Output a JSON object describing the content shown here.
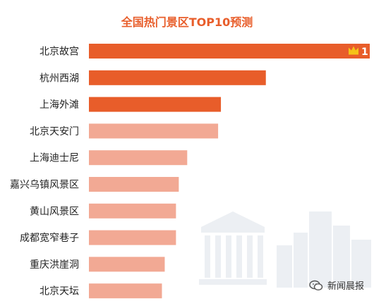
{
  "chart_data": {
    "type": "bar",
    "orientation": "horizontal",
    "title": "全国热门景区TOP10预测",
    "categories": [
      "北京故宫",
      "杭州西湖",
      "上海外滩",
      "北京天安门",
      "上海迪士尼",
      "嘉兴乌镇风景区",
      "黄山风景区",
      "成都宽窄巷子",
      "重庆洪崖洞",
      "北京天坛"
    ],
    "values": [
      100,
      63,
      47,
      46,
      35,
      32,
      31,
      31,
      27,
      26
    ],
    "xlim": [
      0,
      100
    ],
    "grid": false,
    "legend": "none",
    "rank_badge": {
      "text": "1",
      "icon": "crown-icon"
    },
    "colors": {
      "top3": "#e85d2a",
      "rest": "#f2a994",
      "title": "#e85d2a",
      "badge": "#ffffff",
      "crown": "#f5c218"
    }
  },
  "watermark": {
    "text": "新闻晨报",
    "icon": "wechat-icon"
  }
}
